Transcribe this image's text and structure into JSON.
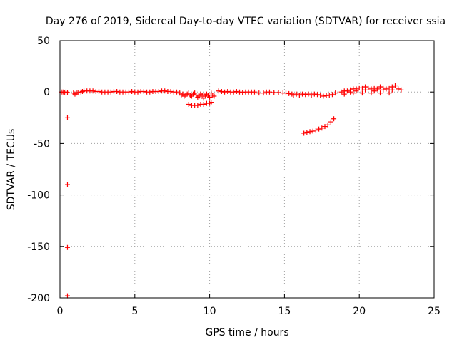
{
  "chart_data": {
    "type": "scatter",
    "title": "Day 276 of 2019, Sidereal Day-to-day VTEC variation (SDTVAR) for receiver ssia",
    "xlabel": "GPS time / hours",
    "ylabel": "SDTVAR / TECUs",
    "xlim": [
      0,
      25
    ],
    "ylim": [
      -200,
      50
    ],
    "xticks": [
      0,
      5,
      10,
      15,
      20,
      25
    ],
    "yticks": [
      -200,
      -150,
      -100,
      -50,
      0,
      50
    ],
    "xtick_labels": [
      "0",
      "5",
      "10",
      "15",
      "20",
      "25"
    ],
    "ytick_labels": [
      "-200",
      "-150",
      "-100",
      "-50",
      "0",
      "50"
    ],
    "grid": true,
    "marker": "+",
    "color": "#ff0000",
    "series": [
      {
        "name": "SDTVAR",
        "points": [
          [
            0.1,
            0
          ],
          [
            0.2,
            0
          ],
          [
            0.3,
            -0.5
          ],
          [
            0.4,
            0
          ],
          [
            0.5,
            -0.5
          ],
          [
            0.5,
            -25
          ],
          [
            0.5,
            -90
          ],
          [
            0.5,
            -151
          ],
          [
            0.5,
            -198
          ],
          [
            0.9,
            -1
          ],
          [
            1.0,
            -2
          ],
          [
            1.1,
            -1
          ],
          [
            1.2,
            -0.5
          ],
          [
            1.4,
            0
          ],
          [
            1.5,
            0.5
          ],
          [
            1.6,
            1
          ],
          [
            1.8,
            1
          ],
          [
            2.0,
            1
          ],
          [
            2.2,
            1
          ],
          [
            2.4,
            0.5
          ],
          [
            2.6,
            0.5
          ],
          [
            2.8,
            0
          ],
          [
            3.0,
            0
          ],
          [
            3.2,
            0
          ],
          [
            3.4,
            0
          ],
          [
            3.6,
            0.5
          ],
          [
            3.8,
            0.5
          ],
          [
            4.0,
            0
          ],
          [
            4.2,
            0
          ],
          [
            4.4,
            0
          ],
          [
            4.6,
            0
          ],
          [
            4.8,
            0.5
          ],
          [
            5.0,
            0
          ],
          [
            5.2,
            0
          ],
          [
            5.4,
            0.5
          ],
          [
            5.6,
            0.5
          ],
          [
            5.8,
            0
          ],
          [
            6.0,
            0
          ],
          [
            6.2,
            0.5
          ],
          [
            6.4,
            0.5
          ],
          [
            6.6,
            0.5
          ],
          [
            6.8,
            1
          ],
          [
            7.0,
            1
          ],
          [
            7.2,
            0.5
          ],
          [
            7.4,
            0.5
          ],
          [
            7.6,
            0
          ],
          [
            7.8,
            0
          ],
          [
            8.0,
            -1
          ],
          [
            8.1,
            -3
          ],
          [
            8.2,
            -2
          ],
          [
            8.3,
            -4
          ],
          [
            8.4,
            -3
          ],
          [
            8.5,
            -2
          ],
          [
            8.6,
            -1
          ],
          [
            8.7,
            -3
          ],
          [
            8.8,
            -4
          ],
          [
            8.9,
            -2
          ],
          [
            9.0,
            -1
          ],
          [
            9.1,
            -3
          ],
          [
            9.2,
            -5
          ],
          [
            9.3,
            -4
          ],
          [
            9.4,
            -2
          ],
          [
            9.5,
            -3
          ],
          [
            9.6,
            -6
          ],
          [
            9.7,
            -4
          ],
          [
            9.8,
            -2
          ],
          [
            9.9,
            -3
          ],
          [
            10.0,
            -5
          ],
          [
            8.6,
            -12
          ],
          [
            8.8,
            -13
          ],
          [
            9.0,
            -13
          ],
          [
            9.2,
            -13
          ],
          [
            9.4,
            -12
          ],
          [
            9.6,
            -12
          ],
          [
            9.8,
            -11
          ],
          [
            10.0,
            -11
          ],
          [
            10.1,
            -10
          ],
          [
            10.1,
            -1
          ],
          [
            10.2,
            -3
          ],
          [
            10.3,
            -4
          ],
          [
            10.6,
            1
          ],
          [
            10.8,
            0.5
          ],
          [
            11.0,
            0
          ],
          [
            11.2,
            0.5
          ],
          [
            11.4,
            0
          ],
          [
            11.6,
            0
          ],
          [
            11.8,
            0.5
          ],
          [
            12.0,
            0
          ],
          [
            12.2,
            -0.5
          ],
          [
            12.4,
            0
          ],
          [
            12.6,
            0
          ],
          [
            12.8,
            0
          ],
          [
            13.0,
            0
          ],
          [
            13.3,
            -1
          ],
          [
            13.6,
            -1
          ],
          [
            13.8,
            0
          ],
          [
            14.0,
            0
          ],
          [
            14.3,
            -0.5
          ],
          [
            14.6,
            -0.5
          ],
          [
            14.9,
            -1
          ],
          [
            15.1,
            -1
          ],
          [
            15.3,
            -1.5
          ],
          [
            15.5,
            -2
          ],
          [
            15.6,
            -3
          ],
          [
            15.8,
            -2
          ],
          [
            16.0,
            -3
          ],
          [
            16.2,
            -2
          ],
          [
            16.4,
            -2.5
          ],
          [
            16.6,
            -2
          ],
          [
            16.8,
            -3
          ],
          [
            17.0,
            -2
          ],
          [
            17.2,
            -2.5
          ],
          [
            17.4,
            -3
          ],
          [
            17.6,
            -4
          ],
          [
            17.8,
            -3.5
          ],
          [
            18.0,
            -3
          ],
          [
            18.2,
            -2.5
          ],
          [
            18.4,
            -1
          ],
          [
            16.3,
            -40
          ],
          [
            16.5,
            -39
          ],
          [
            16.7,
            -38.5
          ],
          [
            16.9,
            -38
          ],
          [
            17.1,
            -37
          ],
          [
            17.3,
            -36
          ],
          [
            17.5,
            -35
          ],
          [
            17.7,
            -33.5
          ],
          [
            17.9,
            -32
          ],
          [
            18.1,
            -29
          ],
          [
            18.3,
            -26
          ],
          [
            18.8,
            0
          ],
          [
            19.0,
            1
          ],
          [
            19.2,
            1
          ],
          [
            19.4,
            2
          ],
          [
            19.6,
            3
          ],
          [
            19.8,
            3
          ],
          [
            20.0,
            4
          ],
          [
            20.2,
            4
          ],
          [
            20.4,
            5
          ],
          [
            20.6,
            4
          ],
          [
            20.8,
            3
          ],
          [
            21.0,
            4
          ],
          [
            21.2,
            3
          ],
          [
            21.4,
            5
          ],
          [
            21.6,
            4
          ],
          [
            21.8,
            3
          ],
          [
            22.0,
            4
          ],
          [
            22.2,
            5
          ],
          [
            22.4,
            6
          ],
          [
            22.6,
            3
          ],
          [
            22.8,
            2
          ],
          [
            19.4,
            0
          ],
          [
            19.8,
            1
          ],
          [
            20.4,
            2
          ],
          [
            21.0,
            1
          ],
          [
            21.6,
            2
          ],
          [
            22.2,
            2
          ],
          [
            19.0,
            -2
          ],
          [
            19.6,
            -1
          ],
          [
            20.2,
            -1
          ],
          [
            20.8,
            -1
          ],
          [
            21.4,
            -1
          ],
          [
            22.0,
            -1
          ]
        ]
      }
    ]
  }
}
